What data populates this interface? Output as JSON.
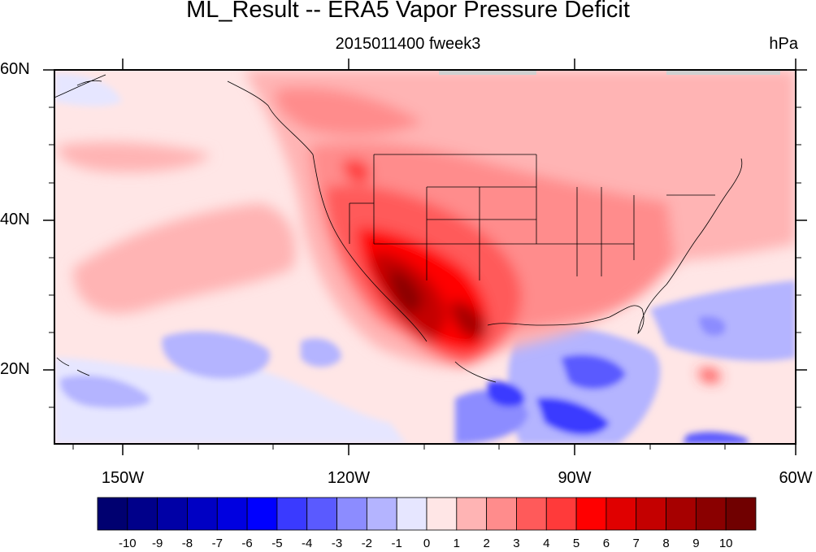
{
  "title": "ML_Result -- ERA5 Vapor Pressure Deficit",
  "subtitle": "2015011400 fweek3",
  "units": "hPa",
  "map": {
    "lat_labels": [
      "60N",
      "40N",
      "20N"
    ],
    "lon_labels": [
      "150W",
      "120W",
      "90W",
      "60W"
    ],
    "lat_range": [
      10,
      60
    ],
    "lon_range": [
      -160,
      -60
    ],
    "projection": "cylindrical-equidistant",
    "overlays": [
      "coastlines",
      "us-state-boundaries",
      "country-boundaries"
    ]
  },
  "colorbar": {
    "labels": [
      "-10",
      "-9",
      "-8",
      "-7",
      "-6",
      "-5",
      "-4",
      "-3",
      "-2",
      "-1",
      "0",
      "1",
      "2",
      "3",
      "4",
      "5",
      "6",
      "7",
      "8",
      "9",
      "10"
    ],
    "colors": [
      "#000070",
      "#00008a",
      "#0000a6",
      "#0000c4",
      "#0000e0",
      "#0000ff",
      "#3a3aff",
      "#5a5aff",
      "#8c8cff",
      "#b4b4ff",
      "#e6e6ff",
      "#ffe6e6",
      "#ffb4b4",
      "#ff8c8c",
      "#ff5a5a",
      "#ff3a3a",
      "#ff0000",
      "#e00000",
      "#c40000",
      "#a60000",
      "#8a0000",
      "#700000"
    ]
  }
}
